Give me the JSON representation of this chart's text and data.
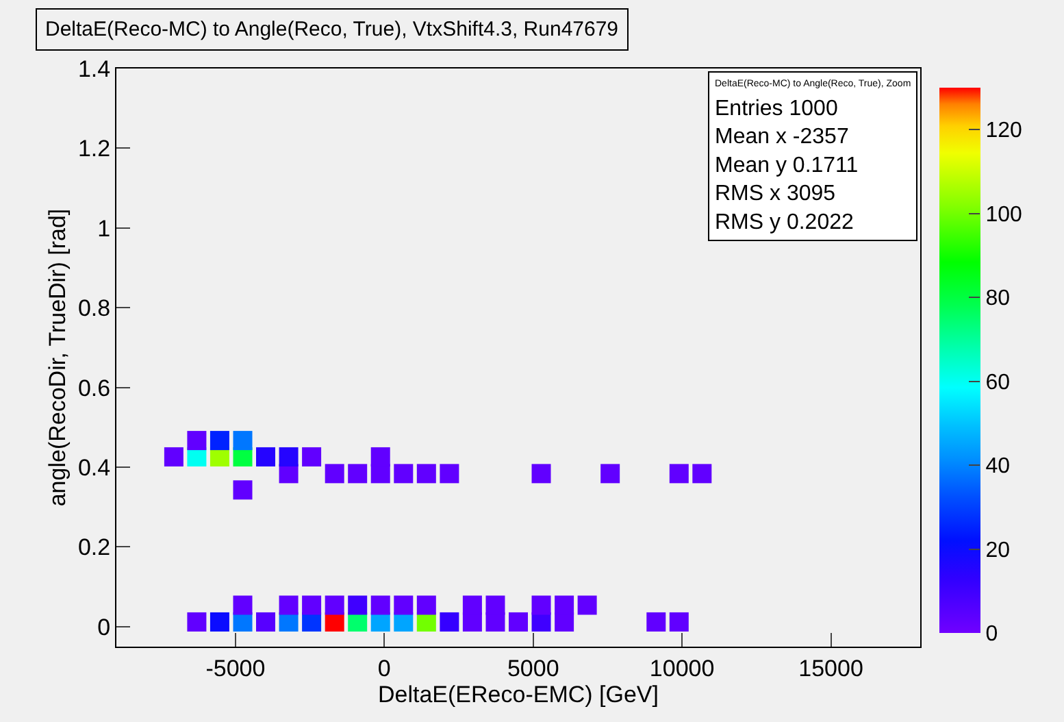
{
  "chart_data": {
    "type": "scatter",
    "title": "DeltaE(Reco-MC) to Angle(Reco, True), VtxShift4.3, Run47679",
    "xlabel": "DeltaE(EReco-EMC) [GeV]",
    "ylabel": "angle(RecoDir, TrueDir) [rad]",
    "x": [
      -6300,
      -5529,
      -4757,
      -3986,
      -3214,
      -2443,
      -1671,
      -900,
      -129,
      643,
      1414,
      2186,
      2957,
      3729,
      4500,
      5271,
      6043,
      9129,
      9900,
      -4757,
      -3214,
      -2443,
      -1671,
      -900,
      -129,
      643,
      1414,
      2957,
      3729,
      5271,
      6043,
      6814,
      -4757,
      -3214,
      -1671,
      -900,
      -129,
      643,
      1414,
      2186,
      5271,
      7586,
      9900,
      10671,
      -7071,
      -6300,
      -5529,
      -4757,
      -3986,
      -3214,
      -2443,
      -129,
      -6300,
      -5529,
      -4757
    ],
    "values": [
      0.012,
      0.012,
      0.012,
      0.012,
      0.012,
      0.012,
      0.012,
      0.012,
      0.012,
      0.012,
      0.012,
      0.012,
      0.012,
      0.012,
      0.012,
      0.012,
      0.012,
      0.012,
      0.012,
      0.054,
      0.054,
      0.054,
      0.054,
      0.054,
      0.054,
      0.054,
      0.054,
      0.054,
      0.054,
      0.054,
      0.054,
      0.054,
      0.343,
      0.384,
      0.384,
      0.384,
      0.384,
      0.384,
      0.384,
      0.384,
      0.384,
      0.384,
      0.384,
      0.384,
      0.426,
      0.426,
      0.426,
      0.426,
      0.426,
      0.426,
      0.426,
      0.426,
      0.467,
      0.467,
      0.467
    ],
    "cvalues": [
      3,
      20,
      38,
      5,
      38,
      28,
      130,
      75,
      45,
      45,
      100,
      12,
      3,
      3,
      3,
      10,
      3,
      3,
      3,
      3,
      3,
      3,
      3,
      10,
      3,
      3,
      3,
      3,
      3,
      3,
      3,
      3,
      3,
      3,
      3,
      3,
      3,
      3,
      3,
      3,
      3,
      3,
      3,
      3,
      3,
      60,
      105,
      80,
      15,
      15,
      3,
      3,
      3,
      25,
      38
    ],
    "marker": "square",
    "xlim": [
      -9000,
      18000
    ],
    "xticks": [
      -5000,
      0,
      5000,
      10000,
      15000
    ],
    "ylim": [
      -0.05,
      1.4
    ],
    "yticks": [
      0,
      0.2,
      0.4,
      0.6,
      0.8,
      1,
      1.2,
      1.4
    ],
    "clim": [
      0,
      130
    ],
    "cticks": [
      0,
      20,
      40,
      60,
      80,
      100,
      120
    ],
    "grid": false,
    "annotations": [
      "DeltaE(Reco-MC) to Angle(Reco, True), Zoom",
      "Entries 1000",
      "Mean x -2357",
      "Mean y 0.1711",
      "RMS x 3095",
      "RMS y 0.2022"
    ]
  }
}
